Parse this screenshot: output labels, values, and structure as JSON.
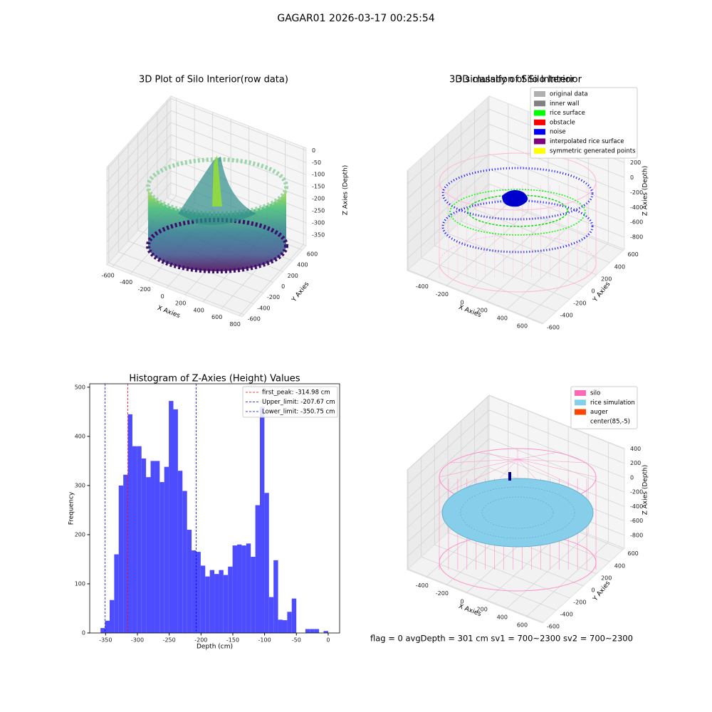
{
  "title": "GAGAR01 2026-03-17 00:25:54",
  "status": "flag = 0     avgDepth = 301 cm  sv1 = 700~2300  sv2 = 700~2300",
  "chart_data": [
    {
      "type": "scatter3d",
      "title": "3D Plot of Silo Interior(row data)",
      "xlabel": "X Axies",
      "ylabel": "Y Axies",
      "zlabel": "Z Axies (Depth)",
      "xlim": [
        -660,
        830
      ],
      "ylim": [
        -640,
        680
      ],
      "zlim": [
        -395,
        10
      ],
      "xticks": [
        -600,
        -400,
        -200,
        0,
        200,
        400,
        600,
        800
      ],
      "yticks": [
        -600,
        -400,
        -200,
        0,
        200,
        400,
        600
      ],
      "zticks": [
        0,
        -50,
        -100,
        -150,
        -200,
        -250,
        -300,
        -350
      ]
    },
    {
      "type": "classify3d",
      "title": "3D classify of Silo Interior",
      "xlabel": "X Axies",
      "ylabel": "Y Axies",
      "zlabel": "Z Axies (Depth)",
      "xlim": [
        -590,
        760
      ],
      "ylim": [
        -610,
        620
      ],
      "zlim": [
        -960,
        375
      ],
      "xticks": [
        -400,
        -200,
        0,
        200,
        400,
        600
      ],
      "yticks": [
        -600,
        -400,
        -200,
        0,
        200,
        400,
        600
      ],
      "zticks": [
        200,
        0,
        -200,
        -400,
        -600,
        -800
      ],
      "legend": {
        "position": "upper right",
        "items": [
          {
            "name": "original data",
            "color": "#b0b0b0"
          },
          {
            "name": "inner wall",
            "color": "#808080"
          },
          {
            "name": "rice surface",
            "color": "#00ff00"
          },
          {
            "name": "obstacle",
            "color": "#ff0000"
          },
          {
            "name": "noise",
            "color": "#0000ff"
          },
          {
            "name": "interpolated rice surface",
            "color": "#800080"
          },
          {
            "name": "symmetric generated points",
            "color": "#ffff00"
          }
        ]
      }
    },
    {
      "type": "histogram",
      "title": "Histogram of Z-Axies (Height) Values",
      "xlabel": "Depth (cm)",
      "ylabel": "Frequency",
      "color": "#4d4dff",
      "xlim": [
        -375,
        18
      ],
      "ylim": [
        0,
        507
      ],
      "xticks": [
        -350,
        -300,
        -250,
        -200,
        -150,
        -100,
        -50,
        0
      ],
      "yticks": [
        0,
        100,
        200,
        300,
        400,
        500
      ],
      "bins": [
        -358,
        -350.84,
        -343.68,
        -336.52,
        -329.36,
        -322.2,
        -315.04,
        -307.88,
        -300.72,
        -293.56,
        -286.4,
        -279.24,
        -272.08,
        -264.92,
        -257.76,
        -250.6,
        -243.44,
        -236.28,
        -229.12,
        -221.96,
        -214.8,
        -207.64,
        -200.48,
        -193.32,
        -186.16,
        -179,
        -171.84,
        -164.68,
        -157.52,
        -150.36,
        -143.2,
        -136.04,
        -128.88,
        -121.72,
        -114.56,
        -107.4,
        -100.24,
        -93.08,
        -85.92,
        -78.76,
        -71.6,
        -64.44,
        -57.28,
        -50.12,
        -42.96,
        -35.8,
        -28.64,
        -21.48,
        -14.32,
        -7.16,
        0
      ],
      "values": [
        10,
        25,
        67,
        160,
        300,
        322,
        445,
        380,
        380,
        355,
        317,
        350,
        350,
        307,
        338,
        472,
        455,
        330,
        289,
        210,
        168,
        165,
        137,
        115,
        128,
        120,
        128,
        118,
        135,
        178,
        180,
        178,
        182,
        155,
        260,
        460,
        285,
        73,
        148,
        27,
        26,
        43,
        70,
        0,
        0,
        8,
        8,
        8,
        0,
        4
      ],
      "lines": [
        {
          "name": "first_peak: -314.98 cm",
          "value": -314.98,
          "color": "#ff0000"
        },
        {
          "name": "Upper_limit: -207.67 cm",
          "value": -207.67,
          "color": "#0000ff"
        },
        {
          "name": "Lower_limit: -350.75 cm",
          "value": -350.75,
          "color": "#0000ff"
        }
      ],
      "legend": {
        "position": "upper right"
      }
    },
    {
      "type": "simulation3d",
      "title": "3D simulation of Silo Interior",
      "xlabel": "X Axies",
      "ylabel": "Y Axies",
      "zlabel": "Z Axies (Depth)",
      "xlim": [
        -590,
        760
      ],
      "ylim": [
        -610,
        620
      ],
      "zlim": [
        -980,
        405
      ],
      "xticks": [
        -400,
        -200,
        0,
        200,
        400,
        600
      ],
      "yticks": [
        -600,
        -400,
        -200,
        0,
        200,
        400,
        600
      ],
      "zticks": [
        400,
        200,
        0,
        -200,
        -400,
        -600,
        -800
      ],
      "legend": {
        "position": "upper right",
        "items": [
          {
            "name": "silo",
            "color": "#ff69b4"
          },
          {
            "name": "rice simulation",
            "color": "#87ceeb"
          },
          {
            "name": "auger",
            "color": "#ff4500"
          },
          {
            "name": "center(85,-5)",
            "color": "#ffffff"
          }
        ]
      }
    }
  ]
}
